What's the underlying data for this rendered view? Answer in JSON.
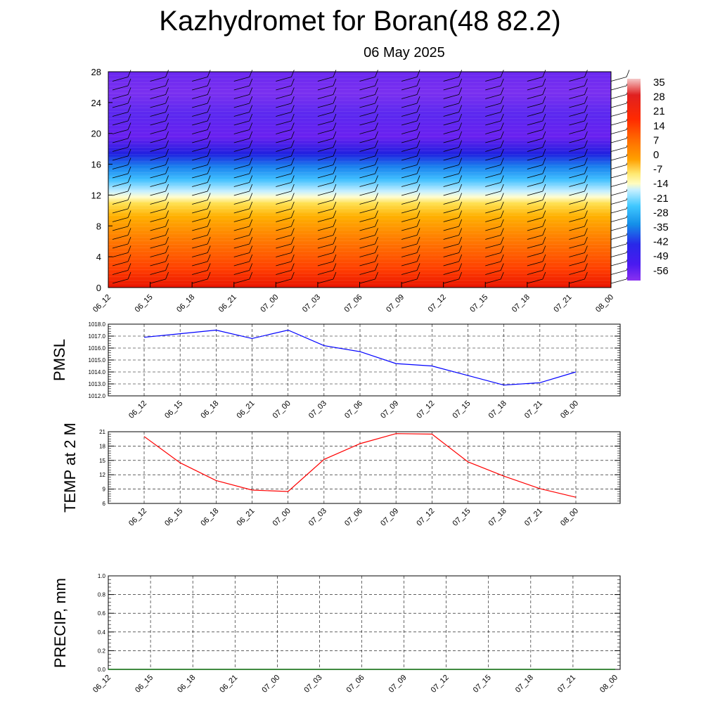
{
  "title": "Kazhydromet for Boran(48 82.2)",
  "subtitle": "06 May 2025",
  "colors": {
    "pmsl_line": "#0000ff",
    "temp_line": "#ff0000",
    "precip_line": "#006400",
    "colorbar": [
      "#f2b2b2",
      "#d80000",
      "#ff2a00",
      "#ff6a00",
      "#ff9c00",
      "#ffc000",
      "#ffe870",
      "#fffcc0",
      "#c8f0ff",
      "#40c8ff",
      "#1490e8",
      "#2860e0",
      "#2020e8",
      "#4a1af0",
      "#7a2ef0"
    ]
  },
  "chart_data": [
    {
      "type": "heatmap",
      "name": "cross-section",
      "xticks": [
        "06_12",
        "06_15",
        "06_18",
        "06_21",
        "07_00",
        "07_03",
        "07_06",
        "07_09",
        "07_12",
        "07_15",
        "07_18",
        "07_21",
        "08_00"
      ],
      "yticks": [
        "0",
        "4",
        "8",
        "12",
        "16",
        "20",
        "24",
        "28"
      ],
      "ylim": [
        0,
        28
      ],
      "colorbar_labels": [
        "35",
        "28",
        "21",
        "14",
        "7",
        "0",
        "-7",
        "-14",
        "-21",
        "-28",
        "-35",
        "-42",
        "-49",
        "-56"
      ],
      "wind_barbs": true
    },
    {
      "type": "line",
      "ylabel": "PMSL",
      "x": [
        "06_12",
        "06_15",
        "06_18",
        "06_21",
        "07_00",
        "07_03",
        "07_06",
        "07_09",
        "07_12",
        "07_15",
        "07_18",
        "07_21",
        "08_00"
      ],
      "values": [
        1016.9,
        1017.2,
        1017.5,
        1016.8,
        1017.5,
        1016.2,
        1015.7,
        1014.7,
        1014.5,
        1013.7,
        1012.9,
        1013.1,
        1014.0
      ],
      "ylim": [
        1012.0,
        1018.0
      ],
      "yticks": [
        "1012.0",
        "1013.0",
        "1014.0",
        "1015.0",
        "1016.0",
        "1017.0",
        "1018.0"
      ],
      "grid": true
    },
    {
      "type": "line",
      "ylabel": "TEMP at 2 M",
      "x": [
        "06_12",
        "06_15",
        "06_18",
        "06_21",
        "07_00",
        "07_03",
        "07_06",
        "07_09",
        "07_12",
        "07_15",
        "07_18",
        "07_21",
        "08_00"
      ],
      "values": [
        20.0,
        14.5,
        10.8,
        8.8,
        8.5,
        15.2,
        18.5,
        20.6,
        20.5,
        14.7,
        11.7,
        9.1,
        7.3
      ],
      "ylim": [
        6,
        21
      ],
      "yticks": [
        "6",
        "9",
        "12",
        "15",
        "18",
        "21"
      ],
      "grid": true
    },
    {
      "type": "line",
      "ylabel": "PRECIP, mm",
      "x": [
        "06_12",
        "06_15",
        "06_18",
        "06_21",
        "07_00",
        "07_03",
        "07_06",
        "07_09",
        "07_12",
        "07_15",
        "07_18",
        "07_21",
        "08_00"
      ],
      "values": [
        0,
        0,
        0,
        0,
        0,
        0,
        0,
        0,
        0,
        0,
        0,
        0,
        0
      ],
      "ylim": [
        0,
        1.0
      ],
      "yticks": [
        "0.0",
        "0.2",
        "0.4",
        "0.6",
        "0.8",
        "1.0"
      ],
      "grid": true
    }
  ]
}
